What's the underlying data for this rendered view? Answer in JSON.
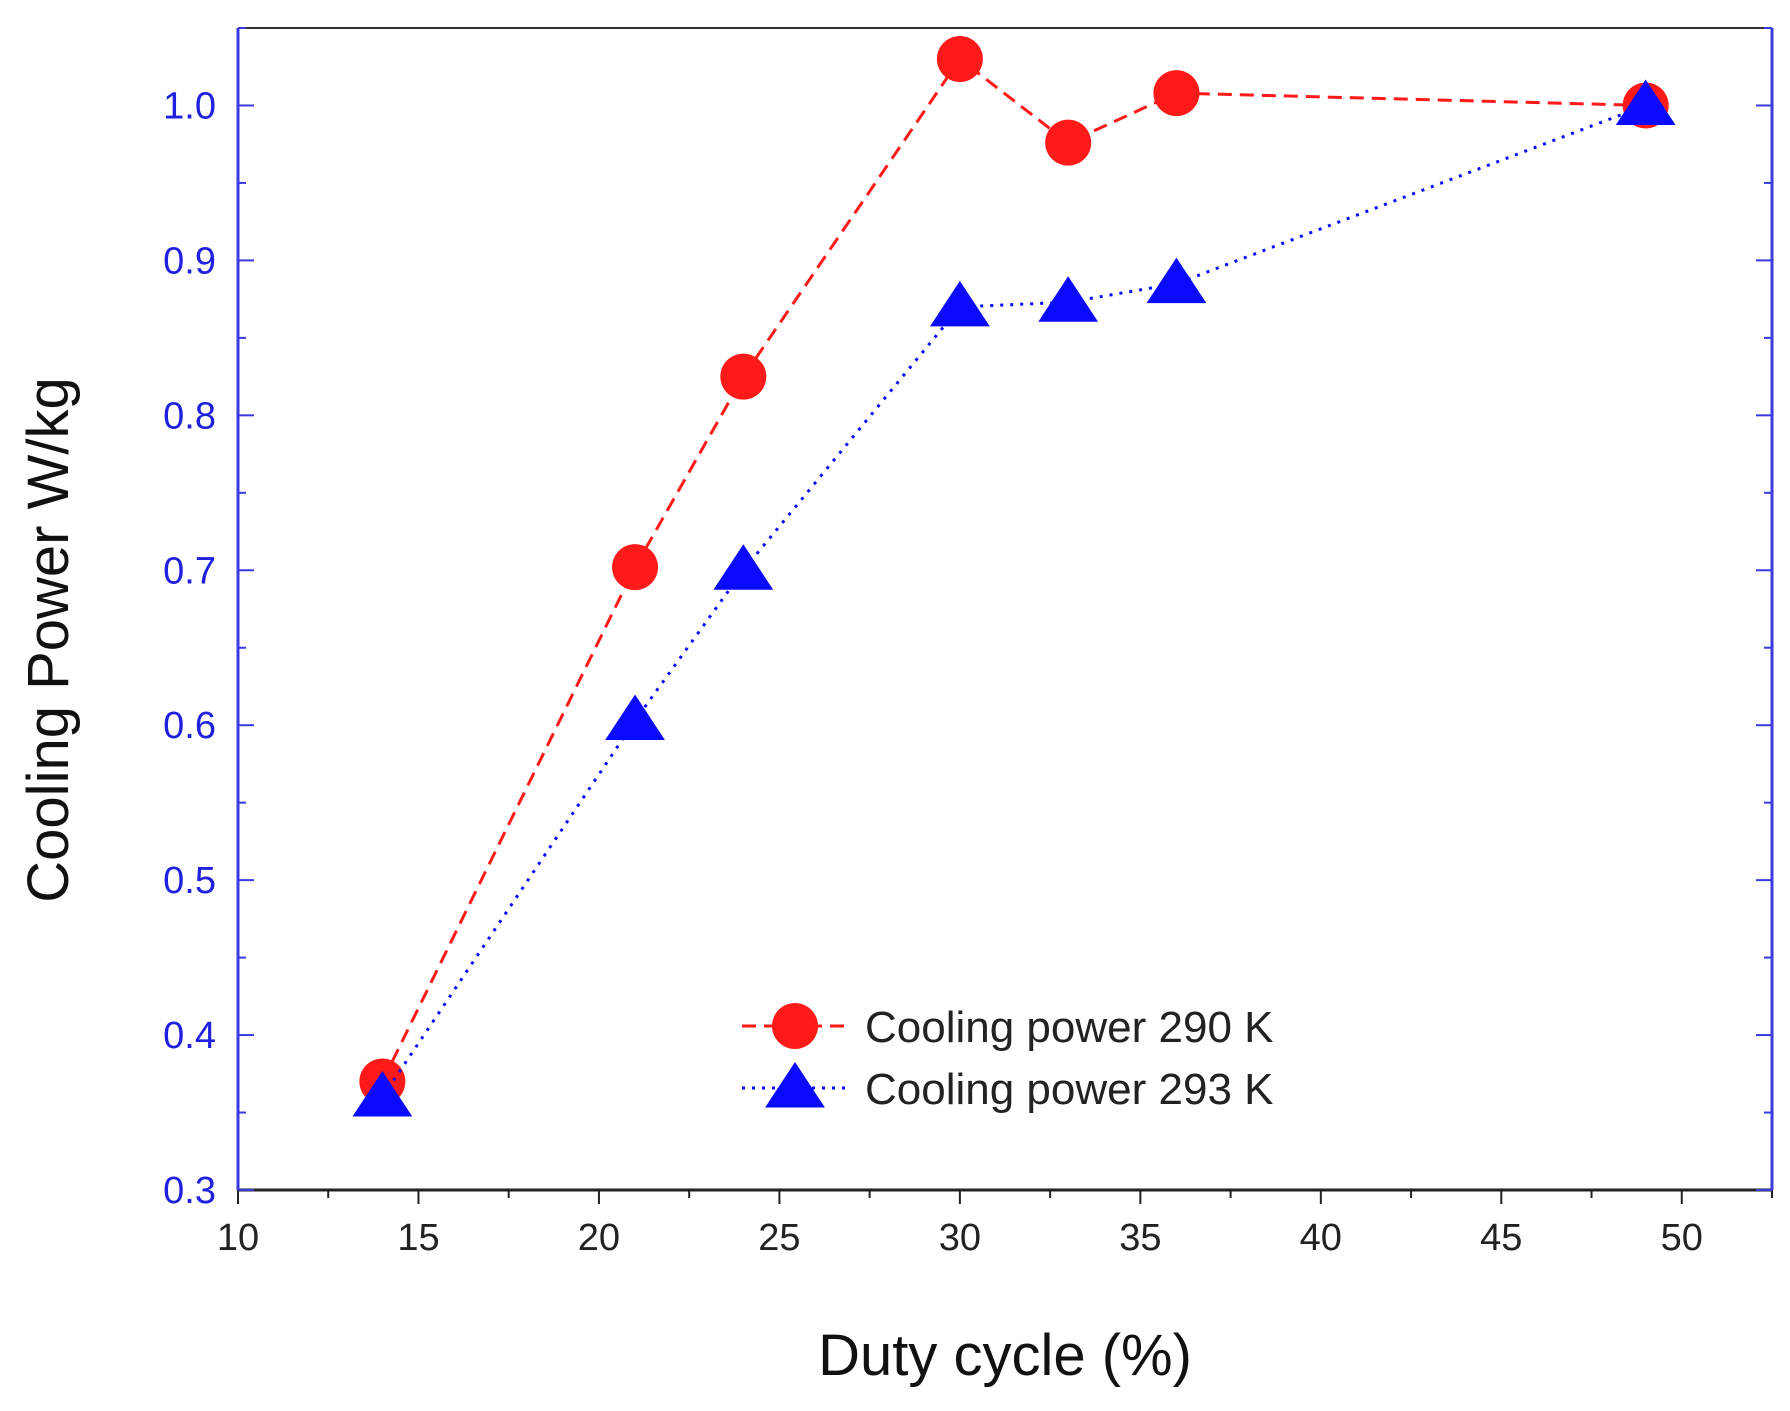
{
  "chart_data": {
    "type": "line",
    "title": "",
    "xlabel": "Duty cycle (%)",
    "ylabel": "Cooling Power W/kg",
    "xlim": [
      10,
      52.5
    ],
    "ylim": [
      0.3,
      1.05
    ],
    "x_ticks": [
      10,
      15,
      20,
      25,
      30,
      35,
      40,
      45,
      50
    ],
    "x_tick_labels": [
      "10",
      "15",
      "20",
      "25",
      "30",
      "35",
      "40",
      "45",
      "50"
    ],
    "y_ticks": [
      0.3,
      0.4,
      0.5,
      0.6,
      0.7,
      0.8,
      0.9,
      1.0
    ],
    "y_tick_labels": [
      "0.3",
      "0.4",
      "0.5",
      "0.6",
      "0.7",
      "0.8",
      "0.9",
      "1.0"
    ],
    "grid": false,
    "legend_position": "bottom-center",
    "series": [
      {
        "name": "Cooling power 290 K",
        "marker": "circle",
        "line_style": "dashed",
        "color": "#ff1a1a",
        "x": [
          14,
          21,
          24,
          30,
          33,
          36,
          49
        ],
        "y": [
          0.37,
          0.702,
          0.825,
          1.03,
          0.976,
          1.008,
          1.0
        ]
      },
      {
        "name": "Cooling power 293 K",
        "marker": "triangle",
        "line_style": "dotted",
        "color": "#0a0aff",
        "x": [
          14,
          21,
          24,
          30,
          33,
          36,
          49
        ],
        "y": [
          0.36,
          0.603,
          0.7,
          0.87,
          0.873,
          0.885,
          1.0
        ]
      }
    ]
  }
}
